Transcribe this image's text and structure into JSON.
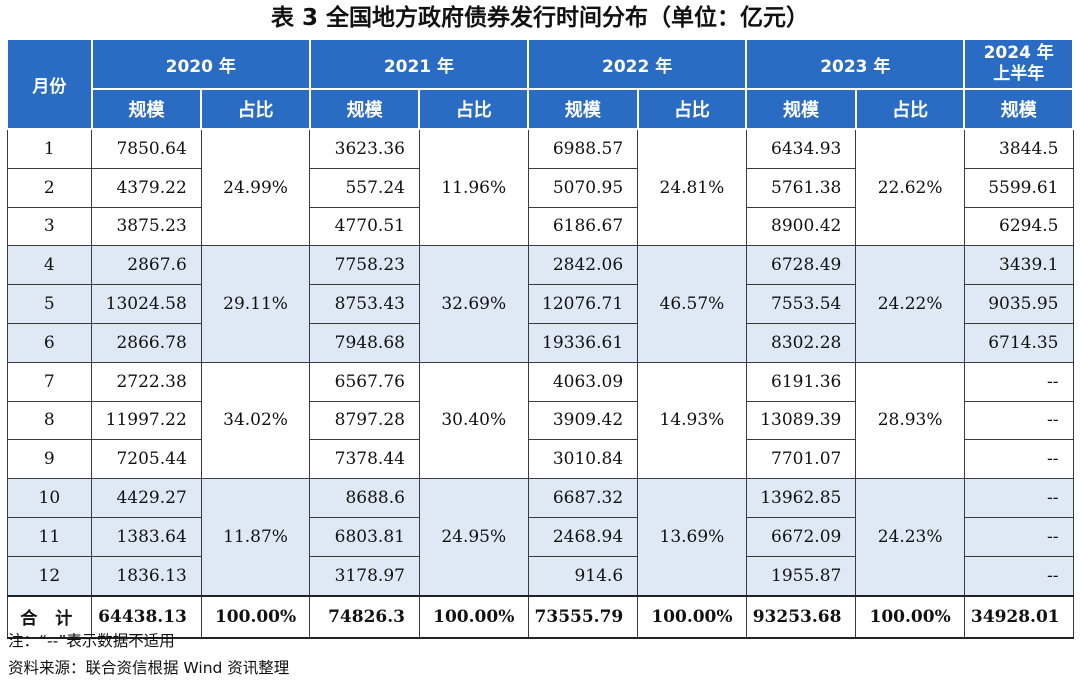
{
  "title": "表 3 全国地方政府债券发行时间分布（单位：亿元）",
  "header": {
    "month": "月份",
    "years": [
      "2020 年",
      "2021 年",
      "2022 年",
      "2023 年"
    ],
    "year2024_line1": "2024 年",
    "year2024_line2": "上半年",
    "scale": "规模",
    "share": "占比"
  },
  "rows": [
    {
      "m": "1",
      "y2020": "7850.64",
      "y2021": "3623.36",
      "y2022": "6988.57",
      "y2023": "6434.93",
      "y2024": "3844.5"
    },
    {
      "m": "2",
      "y2020": "4379.22",
      "y2021": "557.24",
      "y2022": "5070.95",
      "y2023": "5761.38",
      "y2024": "5599.61"
    },
    {
      "m": "3",
      "y2020": "3875.23",
      "y2021": "4770.51",
      "y2022": "6186.67",
      "y2023": "8900.42",
      "y2024": "6294.5"
    },
    {
      "m": "4",
      "y2020": "2867.6",
      "y2021": "7758.23",
      "y2022": "2842.06",
      "y2023": "6728.49",
      "y2024": "3439.1"
    },
    {
      "m": "5",
      "y2020": "13024.58",
      "y2021": "8753.43",
      "y2022": "12076.71",
      "y2023": "7553.54",
      "y2024": "9035.95"
    },
    {
      "m": "6",
      "y2020": "2866.78",
      "y2021": "7948.68",
      "y2022": "19336.61",
      "y2023": "8302.28",
      "y2024": "6714.35"
    },
    {
      "m": "7",
      "y2020": "2722.38",
      "y2021": "6567.76",
      "y2022": "4063.09",
      "y2023": "6191.36",
      "y2024": "--"
    },
    {
      "m": "8",
      "y2020": "11997.22",
      "y2021": "8797.28",
      "y2022": "3909.42",
      "y2023": "13089.39",
      "y2024": "--"
    },
    {
      "m": "9",
      "y2020": "7205.44",
      "y2021": "7378.44",
      "y2022": "3010.84",
      "y2023": "7701.07",
      "y2024": "--"
    },
    {
      "m": "10",
      "y2020": "4429.27",
      "y2021": "8688.6",
      "y2022": "6687.32",
      "y2023": "13962.85",
      "y2024": "--"
    },
    {
      "m": "11",
      "y2020": "1383.64",
      "y2021": "6803.81",
      "y2022": "2468.94",
      "y2023": "6672.09",
      "y2024": "--"
    },
    {
      "m": "12",
      "y2020": "1836.13",
      "y2021": "3178.97",
      "y2022": "914.6",
      "y2023": "1955.87",
      "y2024": "--"
    }
  ],
  "quarters": [
    {
      "p2020": "24.99%",
      "p2021": "11.96%",
      "p2022": "24.81%",
      "p2023": "22.62%"
    },
    {
      "p2020": "29.11%",
      "p2021": "32.69%",
      "p2022": "46.57%",
      "p2023": "24.22%"
    },
    {
      "p2020": "34.02%",
      "p2021": "30.40%",
      "p2022": "14.93%",
      "p2023": "28.93%"
    },
    {
      "p2020": "11.87%",
      "p2021": "24.95%",
      "p2022": "13.69%",
      "p2023": "24.23%"
    }
  ],
  "total": {
    "label": "合 计",
    "y2020": "64438.13",
    "p2020": "100.00%",
    "y2021": "74826.3",
    "p2021": "100.00%",
    "y2022": "73555.79",
    "p2022": "100.00%",
    "y2023": "93253.68",
    "p2023": "100.00%",
    "y2024": "34928.01"
  },
  "notes": {
    "note": "注：“--”表示数据不适用",
    "source": "资料来源：联合资信根据 Wind 资讯整理"
  },
  "colors": {
    "header_bg": "#2a6cc4",
    "band_bg": "#dfe8f5"
  }
}
